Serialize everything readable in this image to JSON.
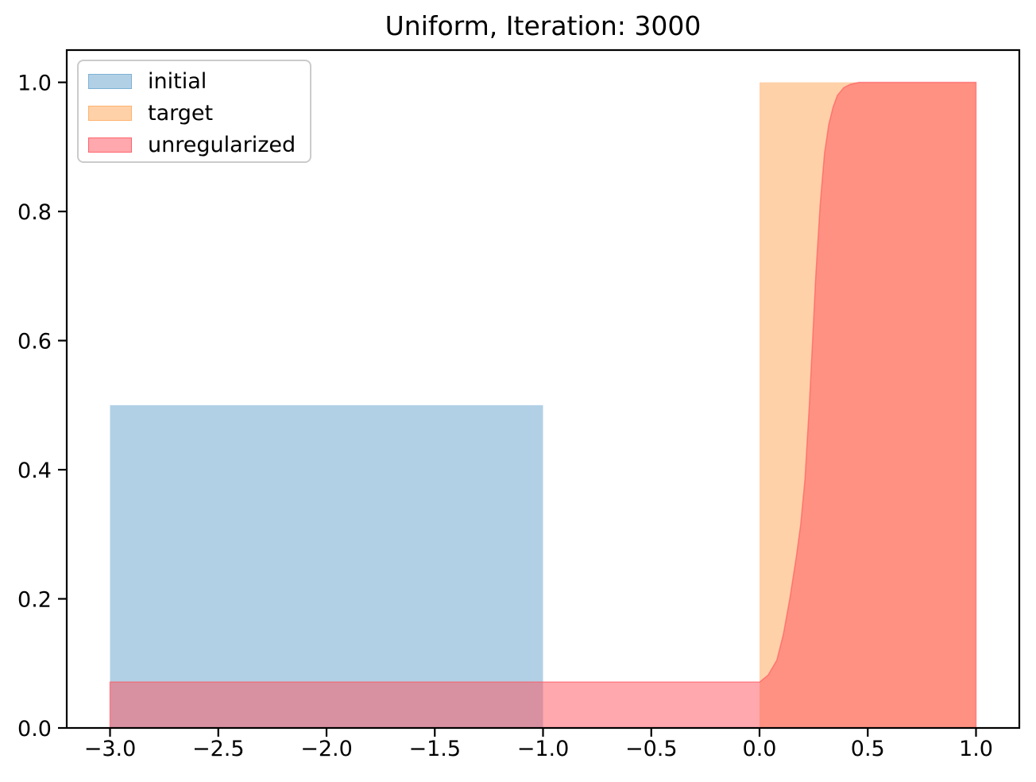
{
  "figure": {
    "title": "Uniform, Iteration: 3000",
    "background": "#ffffff"
  },
  "legend": {
    "position": "upper left",
    "items": [
      {
        "label": "initial",
        "swatch_color": "rgba(31,119,180,0.35)",
        "border_color": "rgba(31,119,180,0.35)"
      },
      {
        "label": "target",
        "swatch_color": "rgba(255,127,14,0.36)",
        "border_color": "rgba(255,127,14,0.36)"
      },
      {
        "label": "unregularized",
        "swatch_color": "rgba(255,82,92,0.5)",
        "border_color": "rgba(255,82,92,0.8)"
      }
    ]
  },
  "chart_data": {
    "type": "area",
    "title": "Uniform, Iteration: 3000",
    "xlabel": "",
    "ylabel": "",
    "xlim": [
      -3.2,
      1.2
    ],
    "ylim": [
      0,
      1.05
    ],
    "grid": false,
    "legend_position": "upper left",
    "xticks": [
      -3.0,
      -2.5,
      -2.0,
      -1.5,
      -1.0,
      -0.5,
      0.0,
      0.5,
      1.0
    ],
    "xtick_labels": [
      "−3.0",
      "−2.5",
      "−2.0",
      "−1.5",
      "−1.0",
      "−0.5",
      "0.0",
      "0.5",
      "1.0"
    ],
    "yticks": [
      0.0,
      0.2,
      0.4,
      0.6,
      0.8,
      1.0
    ],
    "ytick_labels": [
      "0.0",
      "0.2",
      "0.4",
      "0.6",
      "0.8",
      "1.0"
    ],
    "series": [
      {
        "name": "initial",
        "kind": "uniform-rect",
        "x_range": [
          -3.0,
          -1.0
        ],
        "height": 0.5,
        "color": "#1f77b4",
        "alpha": 0.35
      },
      {
        "name": "target",
        "kind": "uniform-rect",
        "x_range": [
          0.0,
          1.0
        ],
        "height": 1.0,
        "color": "#ff7f0e",
        "alpha": 0.36
      },
      {
        "name": "unregularized",
        "kind": "filled-curve",
        "baseline": 0,
        "color": "#ff525c",
        "alpha": 0.5,
        "points": [
          [
            -3.0,
            0.071
          ],
          [
            0.0,
            0.071
          ],
          [
            0.04,
            0.082
          ],
          [
            0.08,
            0.105
          ],
          [
            0.11,
            0.145
          ],
          [
            0.14,
            0.2
          ],
          [
            0.17,
            0.265
          ],
          [
            0.19,
            0.315
          ],
          [
            0.21,
            0.385
          ],
          [
            0.23,
            0.5
          ],
          [
            0.245,
            0.6
          ],
          [
            0.26,
            0.7
          ],
          [
            0.28,
            0.81
          ],
          [
            0.3,
            0.89
          ],
          [
            0.32,
            0.935
          ],
          [
            0.34,
            0.962
          ],
          [
            0.36,
            0.98
          ],
          [
            0.39,
            0.992
          ],
          [
            0.42,
            0.997
          ],
          [
            0.46,
            1.0
          ],
          [
            1.0,
            1.0
          ]
        ]
      }
    ]
  }
}
